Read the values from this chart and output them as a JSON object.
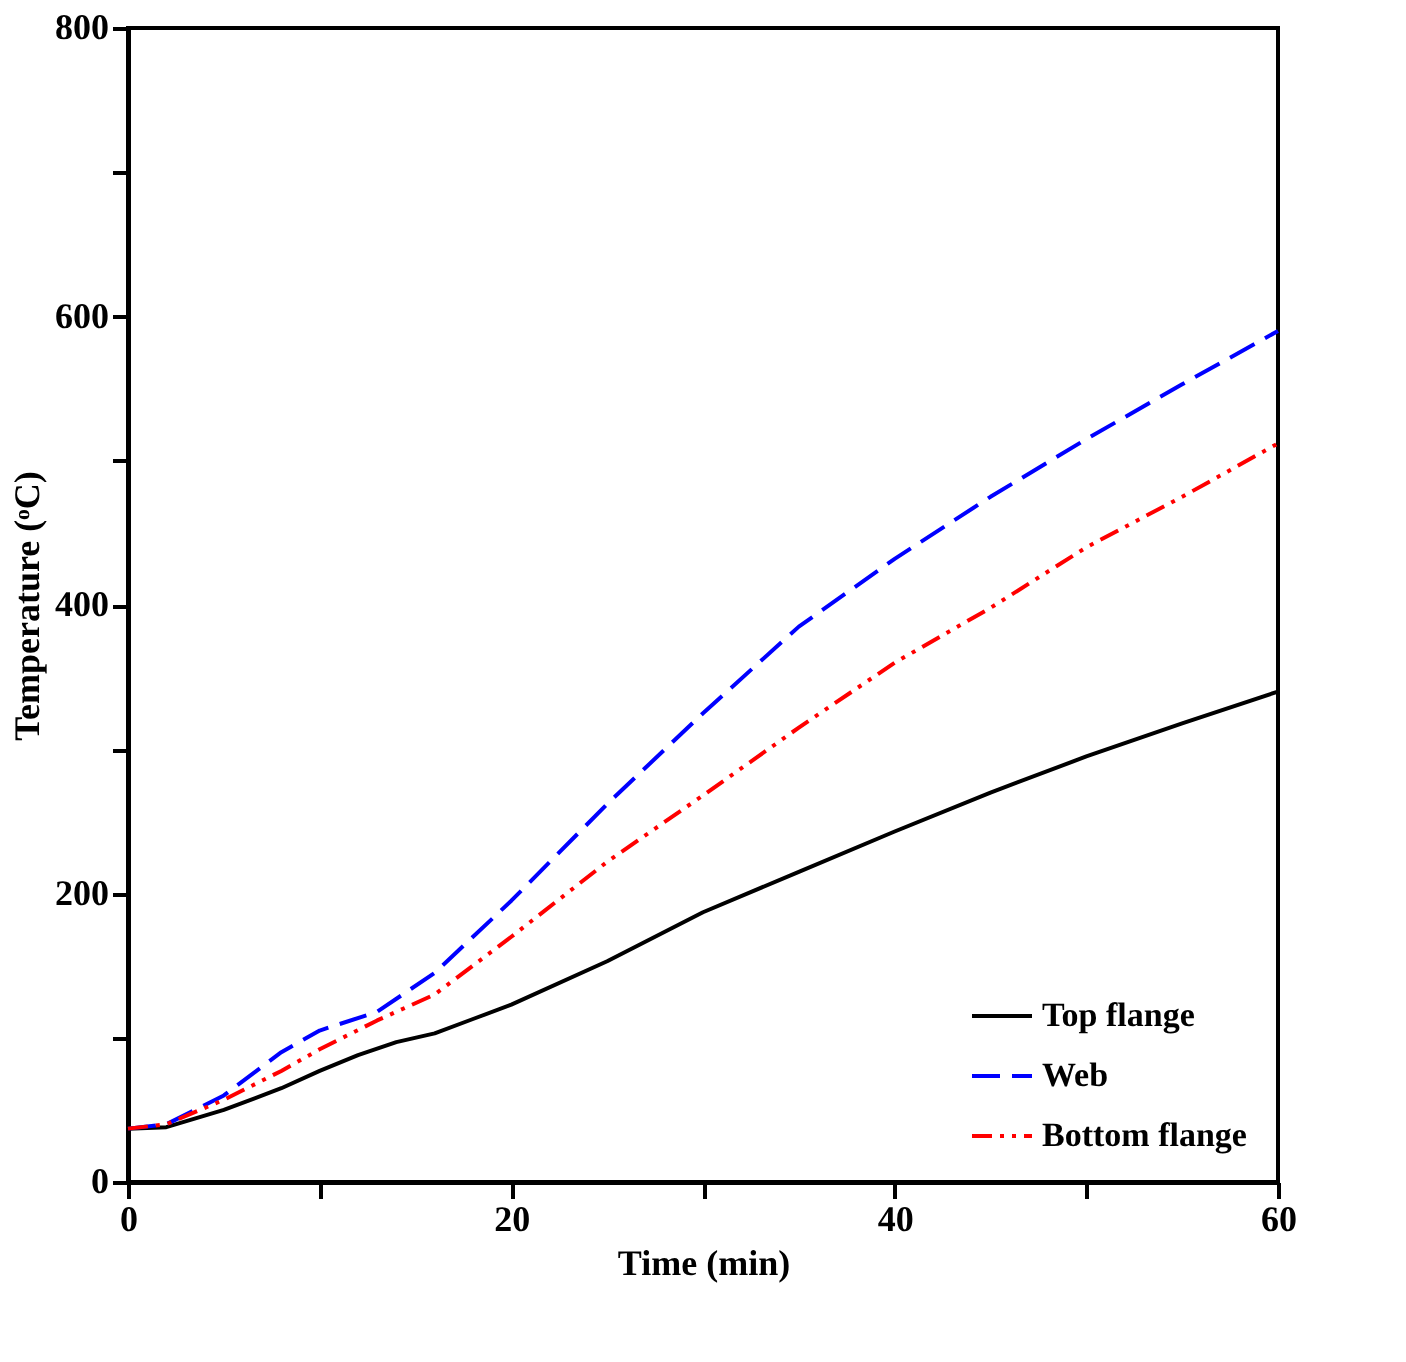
{
  "chart_data": {
    "type": "line",
    "xlabel": "Time (min)",
    "ylabel": "Temperature (ᵒC)",
    "xlim": [
      0,
      60
    ],
    "ylim": [
      0,
      800
    ],
    "xticks": [
      0,
      {
        "value": 10,
        "label": null
      },
      20,
      {
        "value": 30,
        "label": null
      },
      40,
      {
        "value": 50,
        "label": null
      },
      60
    ],
    "yticks": [
      0,
      {
        "value": 100,
        "label": null
      },
      200,
      {
        "value": 300,
        "label": null
      },
      400,
      {
        "value": 500,
        "label": null
      },
      600,
      {
        "value": 700,
        "label": null
      },
      800
    ],
    "grid": false,
    "legend": "bottom right",
    "marker": "none",
    "series": [
      {
        "name": "Top flange",
        "color": "#000000",
        "line_style": "solid",
        "x": [
          0,
          2,
          5,
          8,
          10,
          12,
          14,
          16,
          18,
          20,
          25,
          30,
          35,
          40,
          45,
          50,
          55,
          60
        ],
        "values": [
          37,
          38,
          50,
          65,
          77,
          88,
          97,
          103,
          113,
          123,
          153,
          187,
          215,
          243,
          270,
          295,
          318,
          340
        ]
      },
      {
        "name": "Web",
        "color": "#0000ff",
        "line_style": "dashed",
        "x": [
          0,
          2,
          5,
          8,
          10,
          13,
          16,
          20,
          25,
          30,
          35,
          40,
          45,
          50,
          55,
          60
        ],
        "values": [
          37,
          40,
          60,
          90,
          105,
          118,
          145,
          195,
          262,
          325,
          385,
          432,
          475,
          515,
          553,
          590
        ]
      },
      {
        "name": "Bottom flange",
        "color": "#ff0000",
        "line_style": "dotted",
        "x": [
          0,
          2,
          5,
          8,
          10,
          13,
          16,
          20,
          25,
          30,
          35,
          40,
          45,
          50,
          55,
          60
        ],
        "values": [
          37,
          40,
          57,
          77,
          92,
          112,
          130,
          170,
          222,
          268,
          315,
          360,
          398,
          440,
          475,
          512
        ]
      }
    ]
  }
}
